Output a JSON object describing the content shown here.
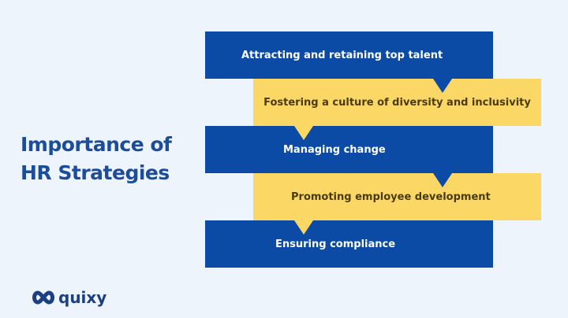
{
  "title_lines": [
    "Importance of",
    "HR Strategies"
  ],
  "items": [
    "Attracting and retaining top talent",
    "Fostering a culture of diversity and inclusivity",
    "Managing change",
    "Promoting employee development",
    "Ensuring compliance"
  ],
  "colors": {
    "blue": "#0b4aa5",
    "yellow": "#fbd865",
    "background": "#eef4fc"
  },
  "logo": {
    "text": "quixy",
    "icon": "infinity-loop-icon"
  }
}
